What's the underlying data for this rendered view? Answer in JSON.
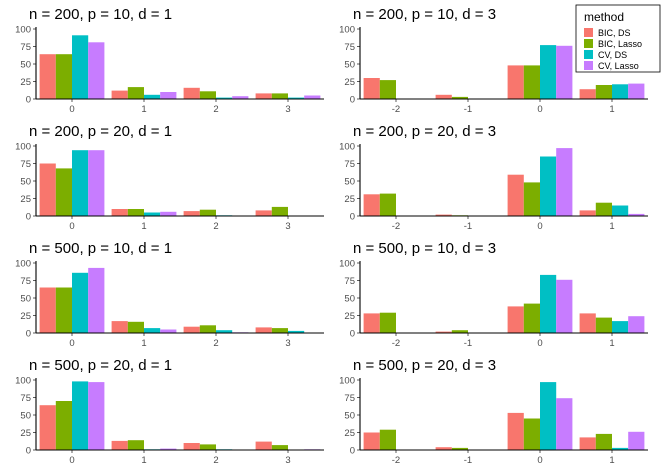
{
  "legend": {
    "title": "method",
    "entries": [
      {
        "label": "BIC, DS",
        "color": "#F8766D"
      },
      {
        "label": "BIC, Lasso",
        "color": "#7CAE00"
      },
      {
        "label": "CV, DS",
        "color": "#00BFC4"
      },
      {
        "label": "CV, Lasso",
        "color": "#C77CFF"
      }
    ]
  },
  "chart_data": [
    {
      "type": "bar",
      "title": "n = 200, p = 10, d = 1",
      "categories": [
        "0",
        "1",
        "2",
        "3"
      ],
      "ylim": [
        0,
        100
      ],
      "yticks": [
        "0",
        "25",
        "50",
        "75",
        "100"
      ],
      "series": [
        {
          "name": "BIC, DS",
          "values": [
            64,
            12,
            16,
            8
          ]
        },
        {
          "name": "BIC, Lasso",
          "values": [
            64,
            17,
            11,
            8
          ]
        },
        {
          "name": "CV, DS",
          "values": [
            91,
            6,
            2,
            2
          ]
        },
        {
          "name": "CV, Lasso",
          "values": [
            81,
            10,
            4,
            5
          ]
        }
      ]
    },
    {
      "type": "bar",
      "title": "n = 200, p = 10, d = 3",
      "categories": [
        "-2",
        "-1",
        "0",
        "1"
      ],
      "ylim": [
        0,
        100
      ],
      "yticks": [
        "0",
        "25",
        "50",
        "75",
        "100"
      ],
      "series": [
        {
          "name": "BIC, DS",
          "values": [
            30,
            6,
            48,
            14
          ]
        },
        {
          "name": "BIC, Lasso",
          "values": [
            27,
            3,
            48,
            20
          ]
        },
        {
          "name": "CV, DS",
          "values": [
            0,
            0,
            77,
            21
          ]
        },
        {
          "name": "CV, Lasso",
          "values": [
            0,
            0,
            76,
            22
          ]
        }
      ]
    },
    {
      "type": "bar",
      "title": "n = 200, p = 20, d = 1",
      "categories": [
        "0",
        "1",
        "2",
        "3"
      ],
      "ylim": [
        0,
        100
      ],
      "yticks": [
        "0",
        "25",
        "50",
        "75",
        "100"
      ],
      "series": [
        {
          "name": "BIC, DS",
          "values": [
            75,
            10,
            7,
            8
          ]
        },
        {
          "name": "BIC, Lasso",
          "values": [
            68,
            10,
            9,
            13
          ]
        },
        {
          "name": "CV, DS",
          "values": [
            94,
            5,
            1,
            0
          ]
        },
        {
          "name": "CV, Lasso",
          "values": [
            94,
            6,
            0,
            0
          ]
        }
      ]
    },
    {
      "type": "bar",
      "title": "n = 200, p = 20, d = 3",
      "categories": [
        "-2",
        "-1",
        "0",
        "1"
      ],
      "ylim": [
        0,
        100
      ],
      "yticks": [
        "0",
        "25",
        "50",
        "75",
        "100"
      ],
      "series": [
        {
          "name": "BIC, DS",
          "values": [
            31,
            2,
            59,
            8
          ]
        },
        {
          "name": "BIC, Lasso",
          "values": [
            32,
            1,
            48,
            19
          ]
        },
        {
          "name": "CV, DS",
          "values": [
            0,
            0,
            85,
            15
          ]
        },
        {
          "name": "CV, Lasso",
          "values": [
            0,
            0,
            97,
            3
          ]
        }
      ]
    },
    {
      "type": "bar",
      "title": "n = 500, p = 10, d = 1",
      "categories": [
        "0",
        "1",
        "2",
        "3"
      ],
      "ylim": [
        0,
        100
      ],
      "yticks": [
        "0",
        "25",
        "50",
        "75",
        "100"
      ],
      "series": [
        {
          "name": "BIC, DS",
          "values": [
            65,
            17,
            9,
            8
          ]
        },
        {
          "name": "BIC, Lasso",
          "values": [
            65,
            16,
            11,
            7
          ]
        },
        {
          "name": "CV, DS",
          "values": [
            86,
            7,
            4,
            3
          ]
        },
        {
          "name": "CV, Lasso",
          "values": [
            93,
            5,
            1,
            0
          ]
        }
      ]
    },
    {
      "type": "bar",
      "title": "n = 500, p = 10, d = 3",
      "categories": [
        "-2",
        "-1",
        "0",
        "1"
      ],
      "ylim": [
        0,
        100
      ],
      "yticks": [
        "0",
        "25",
        "50",
        "75",
        "100"
      ],
      "series": [
        {
          "name": "BIC, DS",
          "values": [
            28,
            2,
            38,
            28
          ]
        },
        {
          "name": "BIC, Lasso",
          "values": [
            29,
            4,
            42,
            22
          ]
        },
        {
          "name": "CV, DS",
          "values": [
            0,
            0,
            83,
            17
          ]
        },
        {
          "name": "CV, Lasso",
          "values": [
            0,
            0,
            76,
            24
          ]
        }
      ]
    },
    {
      "type": "bar",
      "title": "n = 500, p = 20, d = 1",
      "categories": [
        "0",
        "1",
        "2",
        "3"
      ],
      "ylim": [
        0,
        100
      ],
      "yticks": [
        "0",
        "25",
        "50",
        "75",
        "100"
      ],
      "series": [
        {
          "name": "BIC, DS",
          "values": [
            64,
            13,
            10,
            12
          ]
        },
        {
          "name": "BIC, Lasso",
          "values": [
            70,
            14,
            8,
            7
          ]
        },
        {
          "name": "CV, DS",
          "values": [
            98,
            1,
            1,
            0
          ]
        },
        {
          "name": "CV, Lasso",
          "values": [
            97,
            2,
            0,
            1
          ]
        }
      ]
    },
    {
      "type": "bar",
      "title": "n = 500, p = 20, d = 3",
      "categories": [
        "-2",
        "-1",
        "0",
        "1"
      ],
      "ylim": [
        0,
        100
      ],
      "yticks": [
        "0",
        "25",
        "50",
        "75",
        "100"
      ],
      "series": [
        {
          "name": "BIC, DS",
          "values": [
            25,
            4,
            53,
            18
          ]
        },
        {
          "name": "BIC, Lasso",
          "values": [
            29,
            3,
            45,
            23
          ]
        },
        {
          "name": "CV, DS",
          "values": [
            0,
            0,
            97,
            3
          ]
        },
        {
          "name": "CV, Lasso",
          "values": [
            0,
            0,
            74,
            26
          ]
        }
      ]
    }
  ]
}
